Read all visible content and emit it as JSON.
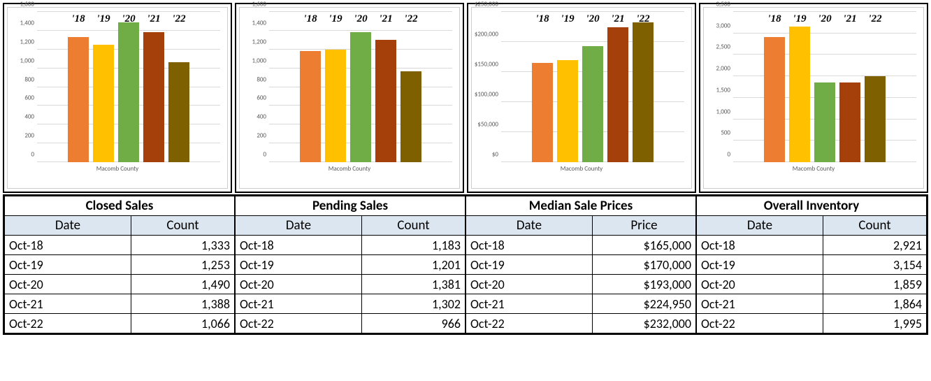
{
  "bar_colors": [
    "#ed7d31",
    "#ffc000",
    "#70ad47",
    "#a5400a",
    "#7e6000"
  ],
  "year_labels": [
    "'18",
    "'19",
    "'20",
    "'21",
    "'22"
  ],
  "grid_color": "#d9d9d9",
  "axis_text_color": "#595959",
  "panels": [
    {
      "title": "Closed Sales",
      "col2": "Count",
      "x_label": "Macomb County",
      "ymax": 1600,
      "ytick_step": 200,
      "y_format": "int_comma",
      "values": [
        1333,
        1253,
        1490,
        1388,
        1066
      ],
      "rows": [
        {
          "date": "Oct-18",
          "val": "1,333"
        },
        {
          "date": "Oct-19",
          "val": "1,253"
        },
        {
          "date": "Oct-20",
          "val": "1,490"
        },
        {
          "date": "Oct-21",
          "val": "1,388"
        },
        {
          "date": "Oct-22",
          "val": "1,066"
        }
      ]
    },
    {
      "title": "Pending Sales",
      "col2": "Count",
      "x_label": "Macomb County",
      "ymax": 1600,
      "ytick_step": 200,
      "y_format": "int_comma",
      "values": [
        1183,
        1201,
        1381,
        1302,
        966
      ],
      "rows": [
        {
          "date": "Oct-18",
          "val": "1,183"
        },
        {
          "date": "Oct-19",
          "val": "1,201"
        },
        {
          "date": "Oct-20",
          "val": "1,381"
        },
        {
          "date": "Oct-21",
          "val": "1,302"
        },
        {
          "date": "Oct-22",
          "val": "966"
        }
      ]
    },
    {
      "title": "Median Sale Prices",
      "col2": "Price",
      "x_label": "Macomb County",
      "ymax": 250000,
      "ytick_step": 50000,
      "y_format": "usd",
      "values": [
        165000,
        170000,
        193000,
        224950,
        232000
      ],
      "rows": [
        {
          "date": "Oct-18",
          "val": "$165,000"
        },
        {
          "date": "Oct-19",
          "val": "$170,000"
        },
        {
          "date": "Oct-20",
          "val": "$193,000"
        },
        {
          "date": "Oct-21",
          "val": "$224,950"
        },
        {
          "date": "Oct-22",
          "val": "$232,000"
        }
      ]
    },
    {
      "title": "Overall Inventory",
      "col2": "Count",
      "x_label": "Macomb County",
      "ymax": 3500,
      "ytick_step": 500,
      "y_format": "int_comma",
      "values": [
        2921,
        3154,
        1859,
        1864,
        1995
      ],
      "rows": [
        {
          "date": "Oct-18",
          "val": "2,921"
        },
        {
          "date": "Oct-19",
          "val": "3,154"
        },
        {
          "date": "Oct-20",
          "val": "1,859"
        },
        {
          "date": "Oct-21",
          "val": "1,864"
        },
        {
          "date": "Oct-22",
          "val": "1,995"
        }
      ]
    }
  ],
  "table_header_bg": "#dce6f1",
  "col1_label": "Date"
}
